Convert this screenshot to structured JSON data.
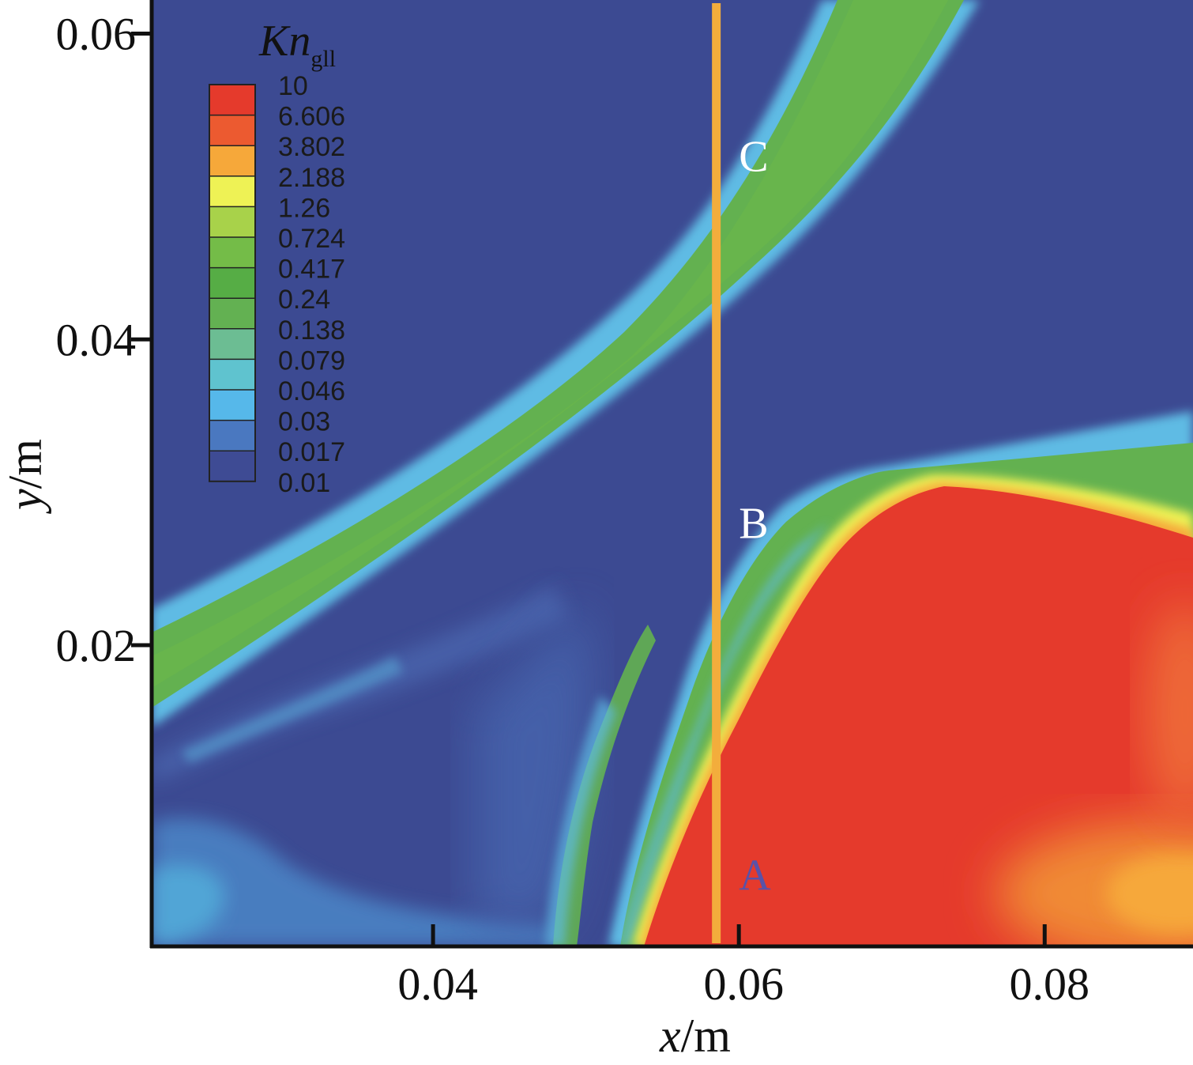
{
  "chart_data": {
    "type": "heatmap",
    "title": "",
    "xlabel": {
      "var": "x",
      "unit": "/m"
    },
    "ylabel": {
      "var": "y",
      "unit": "/m"
    },
    "x_ticks": [
      {
        "value": 0.04,
        "label": "0.04"
      },
      {
        "value": 0.06,
        "label": "0.06"
      },
      {
        "value": 0.08,
        "label": "0.08"
      }
    ],
    "y_ticks": [
      {
        "value": 0.02,
        "label": "0.02"
      },
      {
        "value": 0.04,
        "label": "0.04"
      },
      {
        "value": 0.06,
        "label": "0.06"
      }
    ],
    "xlim": [
      0.0216,
      0.0897
    ],
    "ylim": [
      0.0003,
      0.0622
    ],
    "grid": false,
    "legend": {
      "title_main": "Kn",
      "title_sub": "gll",
      "placement": "top-left",
      "scale": "log",
      "levels": [
        {
          "label": "10",
          "color": "#e53a2c"
        },
        {
          "label": "6.606",
          "color": "#ec5a30"
        },
        {
          "label": "3.802",
          "color": "#f6a83a"
        },
        {
          "label": "2.188",
          "color": "#eef255"
        },
        {
          "label": "1.26",
          "color": "#a8d24a"
        },
        {
          "label": "0.724",
          "color": "#74bc48"
        },
        {
          "label": "0.417",
          "color": "#56ad45"
        },
        {
          "label": "0.24",
          "color": "#63b152"
        },
        {
          "label": "0.138",
          "color": "#6cbd93"
        },
        {
          "label": "0.079",
          "color": "#5fc3cf"
        },
        {
          "label": "0.046",
          "color": "#56b8ea"
        },
        {
          "label": "0.03",
          "color": "#4a78c0"
        },
        {
          "label": "0.017",
          "color": "#3e4b94"
        },
        {
          "label": "0.01",
          "color": "#3c4a92"
        }
      ]
    },
    "colors": {
      "background_field": "#3c4a92",
      "probe_line": "#f3ad3c"
    },
    "probe_line": {
      "x": 0.0585,
      "y_from": 0.0003,
      "y_to": 0.0622
    },
    "annotations": [
      {
        "label": "A",
        "x": 0.06,
        "y": 0.004,
        "color": "#5a52a8"
      },
      {
        "label": "B",
        "x": 0.06,
        "y": 0.027,
        "color": "#ffffff"
      },
      {
        "label": "C",
        "x": 0.06,
        "y": 0.051,
        "color": "#ffffff"
      }
    ]
  }
}
